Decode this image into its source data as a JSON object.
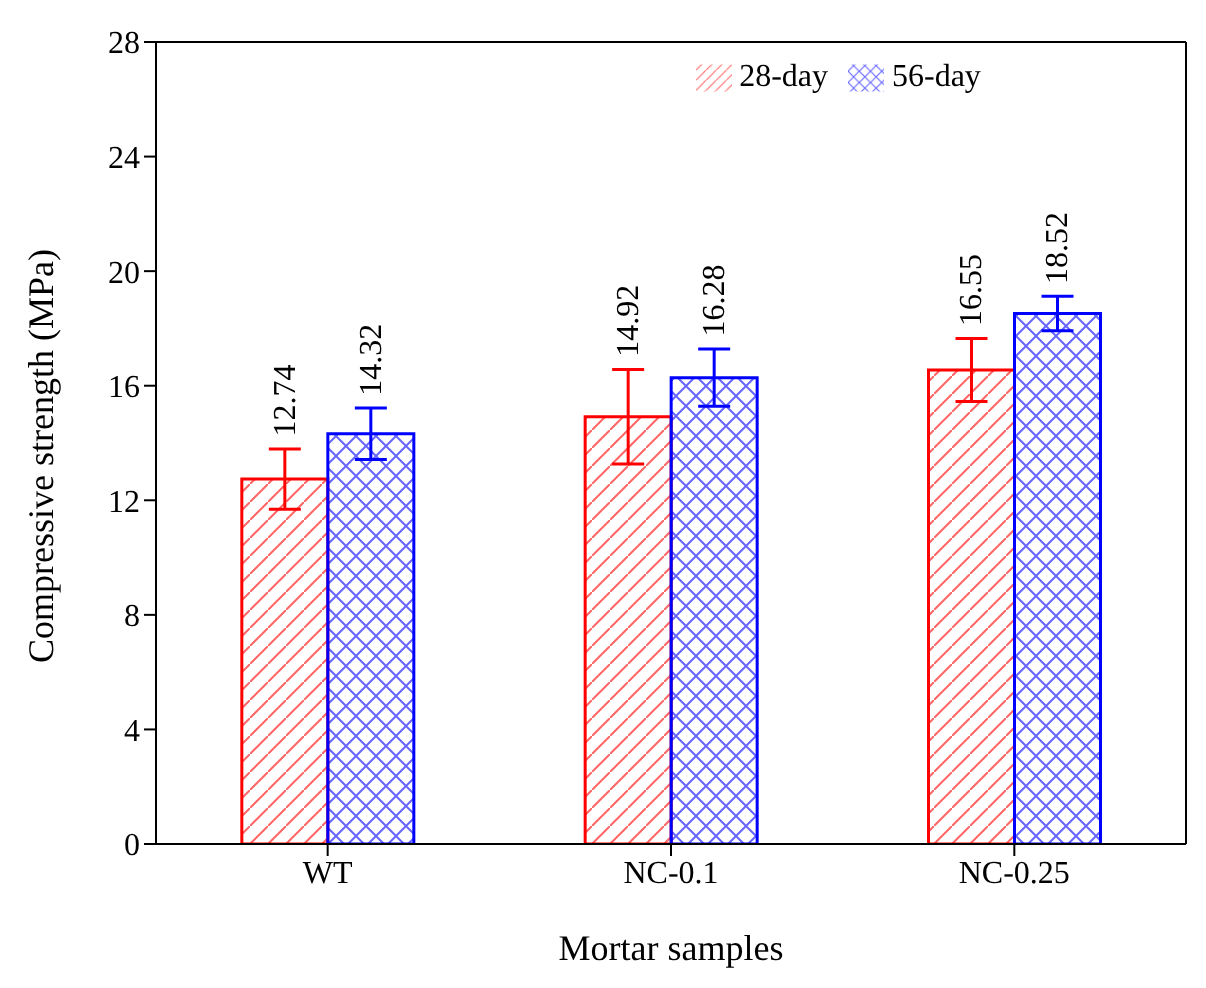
{
  "chart_data": {
    "type": "bar",
    "xlabel": "Mortar samples",
    "ylabel": "Compressive strength (MPa)",
    "categories": [
      "WT",
      "NC-0.1",
      "NC-0.25"
    ],
    "series": [
      {
        "name": "28-day",
        "color": "#ff0000",
        "values": [
          12.74,
          14.92,
          16.55
        ],
        "errors": [
          1.05,
          1.65,
          1.1
        ]
      },
      {
        "name": "56-day",
        "color": "#0000ff",
        "values": [
          14.32,
          16.28,
          18.52
        ],
        "errors": [
          0.9,
          1.0,
          0.6
        ]
      }
    ],
    "ylim": [
      0,
      28
    ],
    "yticks": [
      0,
      4,
      8,
      12,
      16,
      20,
      24,
      28
    ],
    "data_labels": true,
    "legend": "top right",
    "grid": false
  }
}
